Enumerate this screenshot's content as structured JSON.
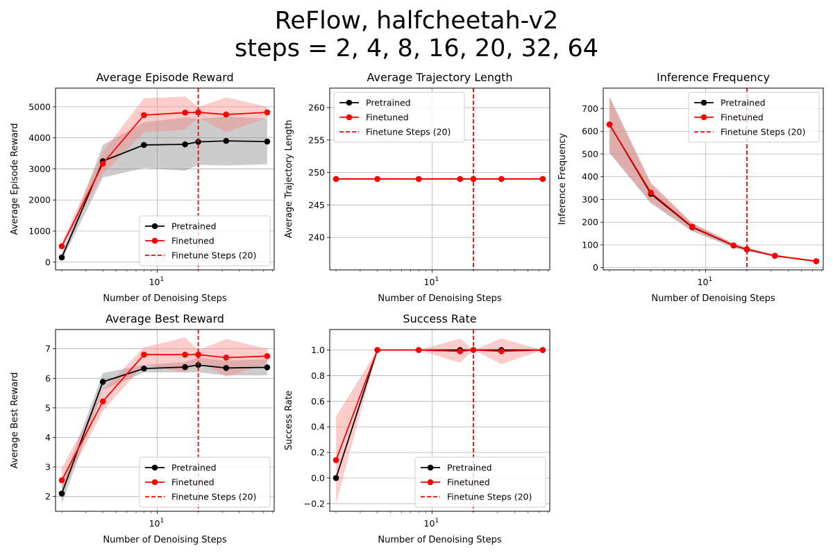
{
  "figure": {
    "title_line1": "ReFlow, halfcheetah-v2",
    "title_line2": "steps = 2, 4, 8, 16, 20, 32, 64"
  },
  "colors": {
    "pretrained": "#000000",
    "finetuned": "#ff0000",
    "pretrained_band": "#808080",
    "finetuned_band": "#ff8080",
    "grid": "#b0b0b0",
    "vline": "#ff0000"
  },
  "chart_data": [
    {
      "type": "line",
      "title": "Average Episode Reward",
      "xlabel": "Number of Denoising Steps",
      "ylabel": "Average Episode Reward",
      "xscale": "log",
      "xlim": [
        1.8,
        72
      ],
      "ylim": [
        -250,
        5600
      ],
      "yticks": [
        0,
        1000,
        2000,
        3000,
        4000,
        5000
      ],
      "ytick_labels": [
        "0",
        "1000",
        "2000",
        "3000",
        "4000",
        "5000"
      ],
      "grid": true,
      "legend_position": "lower-right",
      "x": [
        2,
        4,
        8,
        16,
        20,
        32,
        64
      ],
      "vline": 20,
      "series": [
        {
          "name": "Pretrained",
          "color": "black",
          "values": [
            150,
            3250,
            3770,
            3790,
            3870,
            3900,
            3880
          ],
          "lower": [
            50,
            2720,
            3030,
            2940,
            3130,
            3110,
            3150
          ],
          "upper": [
            280,
            3770,
            4500,
            4650,
            4620,
            4680,
            4620
          ]
        },
        {
          "name": "Finetuned",
          "color": "red",
          "values": [
            510,
            3170,
            4730,
            4810,
            4820,
            4750,
            4820
          ],
          "lower": [
            450,
            2830,
            4180,
            4260,
            4650,
            4180,
            4640
          ],
          "upper": [
            620,
            3550,
            5270,
            5330,
            4990,
            5300,
            5000
          ]
        },
        {
          "name": "Finetune Steps (20)",
          "color": "red",
          "style": "dashed-vline"
        }
      ]
    },
    {
      "type": "line",
      "title": "Average Trajectory Length",
      "xlabel": "Number of Denoising Steps",
      "ylabel": "Average Trajectory Length",
      "xscale": "log",
      "xlim": [
        1.8,
        72
      ],
      "ylim": [
        235,
        263
      ],
      "yticks": [
        240,
        245,
        250,
        255,
        260
      ],
      "ytick_labels": [
        "240",
        "245",
        "250",
        "255",
        "260"
      ],
      "grid": true,
      "legend_position": "upper-left",
      "x": [
        2,
        4,
        8,
        16,
        20,
        32,
        64
      ],
      "vline": 20,
      "series": [
        {
          "name": "Pretrained",
          "color": "black",
          "values": [
            249,
            249,
            249,
            249,
            249,
            249,
            249
          ]
        },
        {
          "name": "Finetuned",
          "color": "red",
          "values": [
            249,
            249,
            249,
            249,
            249,
            249,
            249
          ]
        },
        {
          "name": "Finetune Steps (20)",
          "color": "red",
          "style": "dashed-vline"
        }
      ]
    },
    {
      "type": "line",
      "title": "Inference Frequency",
      "xlabel": "Number of Denoising Steps",
      "ylabel": "Inference Frequency",
      "xscale": "log",
      "xlim": [
        1.8,
        72
      ],
      "ylim": [
        -10,
        790
      ],
      "yticks": [
        0,
        100,
        200,
        300,
        400,
        500,
        600,
        700
      ],
      "ytick_labels": [
        "0",
        "100",
        "200",
        "300",
        "400",
        "500",
        "600",
        "700"
      ],
      "grid": true,
      "legend_position": "upper-right",
      "x": [
        2,
        4,
        8,
        16,
        20,
        32,
        64
      ],
      "vline": 20,
      "series": [
        {
          "name": "Pretrained",
          "color": "black",
          "values": [
            630,
            325,
            178,
            97,
            80,
            52,
            28
          ],
          "lower": [
            505,
            282,
            160,
            88,
            73,
            48,
            25
          ],
          "upper": [
            752,
            368,
            195,
            105,
            87,
            56,
            31
          ]
        },
        {
          "name": "Finetuned",
          "color": "red",
          "values": [
            630,
            330,
            180,
            98,
            81,
            52,
            28
          ],
          "lower": [
            505,
            288,
            162,
            89,
            74,
            48,
            25
          ],
          "upper": [
            752,
            375,
            197,
            106,
            88,
            56,
            31
          ]
        },
        {
          "name": "Finetune Steps (20)",
          "color": "red",
          "style": "dashed-vline"
        }
      ]
    },
    {
      "type": "line",
      "title": "Average Best Reward",
      "xlabel": "Number of Denoising Steps",
      "ylabel": "Average Best Reward",
      "xscale": "log",
      "xlim": [
        1.8,
        72
      ],
      "ylim": [
        1.5,
        7.65
      ],
      "yticks": [
        2,
        3,
        4,
        5,
        6,
        7
      ],
      "ytick_labels": [
        "2",
        "3",
        "4",
        "5",
        "6",
        "7"
      ],
      "grid": true,
      "legend_position": "lower-right",
      "x": [
        2,
        4,
        8,
        16,
        20,
        32,
        64
      ],
      "vline": 20,
      "series": [
        {
          "name": "Pretrained",
          "color": "black",
          "values": [
            2.1,
            5.88,
            6.33,
            6.38,
            6.45,
            6.35,
            6.37
          ],
          "lower": [
            1.75,
            5.6,
            6.2,
            6.2,
            6.2,
            6.1,
            6.1
          ],
          "upper": [
            2.4,
            6.18,
            6.45,
            6.55,
            6.7,
            6.6,
            6.65
          ]
        },
        {
          "name": "Finetuned",
          "color": "red",
          "values": [
            2.55,
            5.22,
            6.8,
            6.8,
            6.8,
            6.7,
            6.75
          ],
          "lower": [
            2.2,
            4.9,
            6.45,
            6.2,
            6.6,
            6.05,
            6.5
          ],
          "upper": [
            2.95,
            5.6,
            7.05,
            7.38,
            6.95,
            7.33,
            7.0
          ]
        },
        {
          "name": "Finetune Steps (20)",
          "color": "red",
          "style": "dashed-vline"
        }
      ]
    },
    {
      "type": "line",
      "title": "Success Rate",
      "xlabel": "Number of Denoising Steps",
      "ylabel": "Success Rate",
      "xscale": "log",
      "xlim": [
        1.8,
        72
      ],
      "ylim": [
        -0.26,
        1.16
      ],
      "yticks": [
        -0.2,
        0,
        0.2,
        0.4,
        0.6,
        0.8,
        1.0
      ],
      "ytick_labels": [
        "−0.2",
        "0.0",
        "0.2",
        "0.4",
        "0.6",
        "0.8",
        "1.0"
      ],
      "grid": true,
      "legend_position": "lower-right",
      "x": [
        2,
        4,
        8,
        16,
        20,
        32,
        64
      ],
      "vline": 20,
      "series": [
        {
          "name": "Pretrained",
          "color": "black",
          "values": [
            0.0,
            1.0,
            1.0,
            1.0,
            1.0,
            1.0,
            1.0
          ]
        },
        {
          "name": "Finetuned",
          "color": "red",
          "values": [
            0.14,
            1.0,
            1.0,
            0.99,
            1.0,
            0.99,
            1.0
          ],
          "lower": [
            -0.2,
            1.0,
            1.0,
            0.9,
            1.0,
            0.89,
            1.0
          ],
          "upper": [
            0.48,
            1.0,
            1.0,
            1.09,
            1.0,
            1.09,
            1.0
          ]
        },
        {
          "name": "Finetune Steps (20)",
          "color": "red",
          "style": "dashed-vline"
        }
      ]
    }
  ]
}
